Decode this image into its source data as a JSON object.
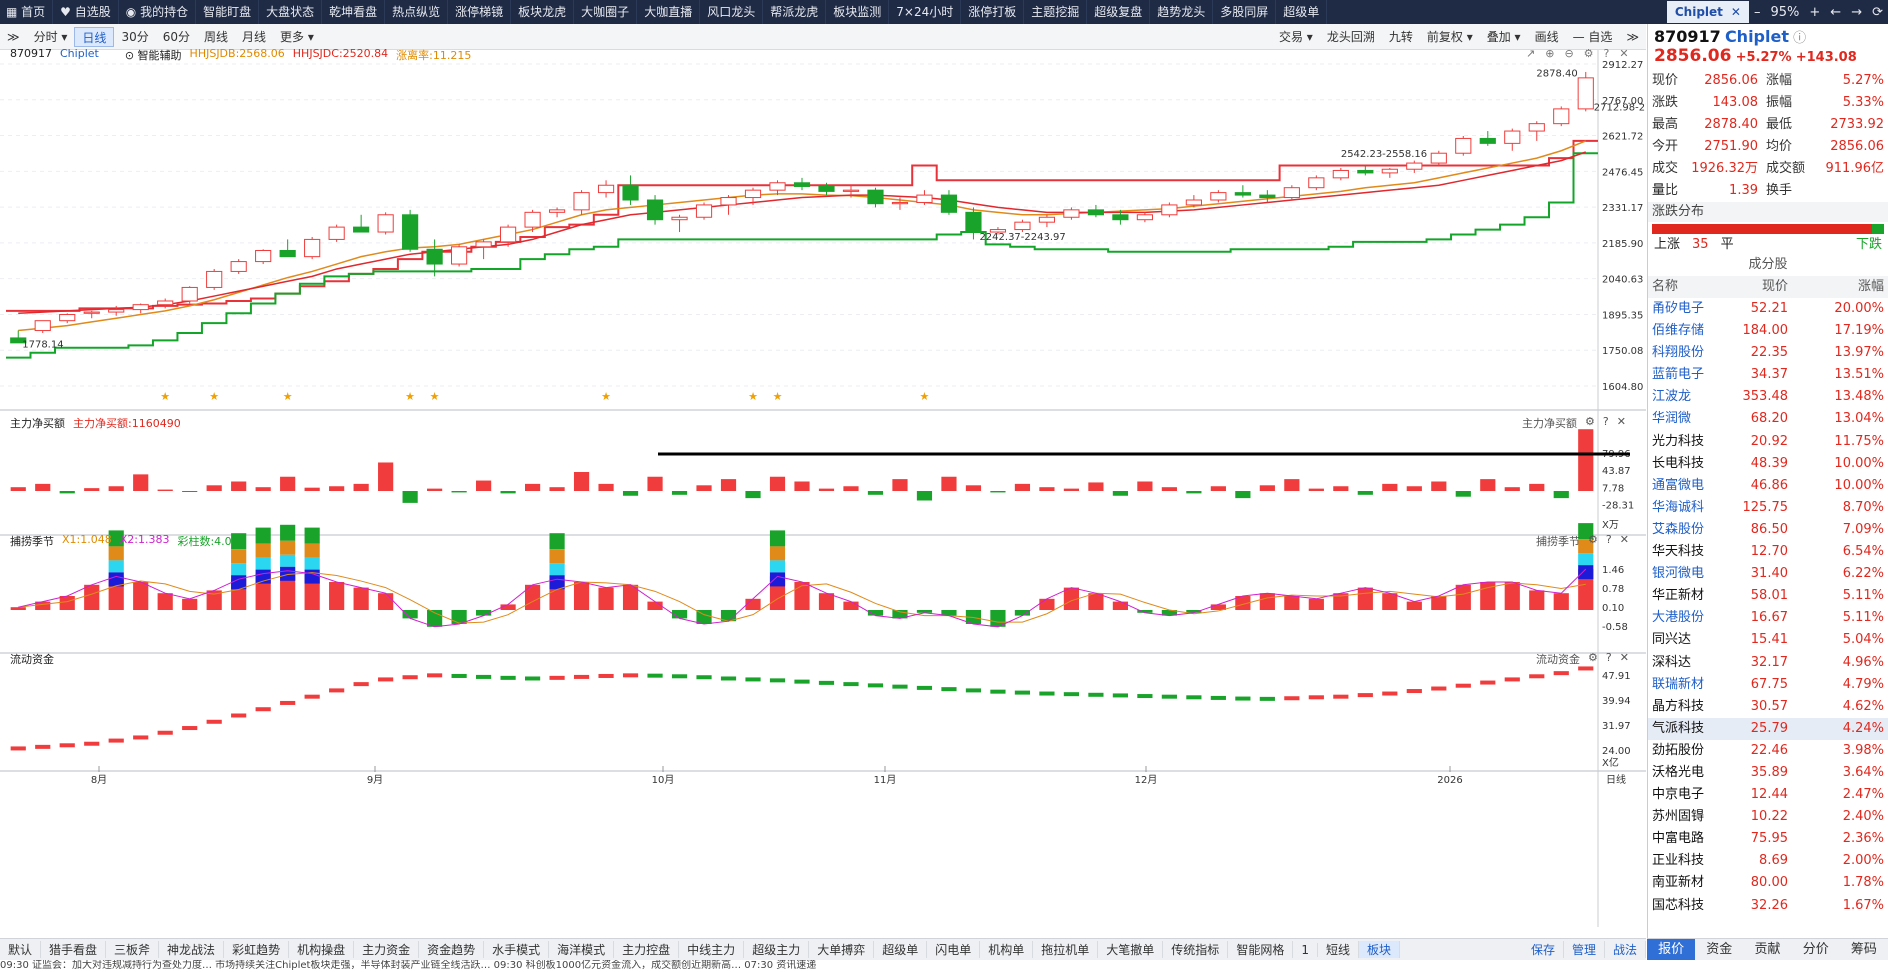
{
  "nav": {
    "items": [
      "首页",
      "自选股",
      "我的持仓",
      "智能盯盘",
      "大盘状态",
      "乾坤看盘",
      "热点纵览",
      "涨停梯镜",
      "板块龙虎",
      "大咖圈子",
      "大咖直播",
      "风口龙头",
      "帮派龙虎",
      "板块监测",
      "7×24小时",
      "涨停打板",
      "主题挖掘",
      "超级复盘",
      "趋势龙头",
      "多股同屏",
      "超级单"
    ],
    "active_tab": "Chiplet",
    "window": {
      "minimize": "–",
      "zoom": "95%",
      "plus": "+",
      "back": "←",
      "forward": "→",
      "refresh": "⟳"
    }
  },
  "toolbar": {
    "periods": [
      "分时",
      "日线",
      "30分",
      "60分",
      "周线",
      "月线",
      "更多"
    ],
    "active_period": "日线",
    "right": [
      "交易",
      "龙头回溯",
      "九转",
      "前复权",
      "叠加",
      "画线",
      "自选"
    ]
  },
  "chart": {
    "stock_code": "870917",
    "stock_name": "Chiplet",
    "assist": "智能辅助",
    "ind1": "HHJSJDB:2568.06",
    "ind2": "HHJSJDC:2520.84",
    "ind3": "涨离率:11.215",
    "annotations": {
      "high": "2878.40",
      "range_hi": "2712.98-2733.92",
      "range_mid": "2542.23-2558.16",
      "range_low": "2242.37-2243.97",
      "start": "1778.14"
    },
    "y_ticks": [
      "2912.27",
      "2767.00",
      "2621.72",
      "2476.45",
      "2331.17",
      "2185.90",
      "2040.63",
      "1895.35",
      "1750.08",
      "1604.80"
    ],
    "flow_title": "主力净买额",
    "flow_value": "主力净买额:1160490",
    "flow_ticks": [
      "79.96",
      "43.87",
      "7.78",
      "-28.31"
    ],
    "flow_unit": "X万",
    "season_title": "捕捞季节",
    "season_x1": "X1:1.048",
    "season_x2": "X2:1.383",
    "season_cols": "彩柱数:4.000",
    "season_ticks": [
      "1.46",
      "0.78",
      "0.10",
      "-0.58"
    ],
    "liquid_title": "流动资金",
    "liquid_ticks": [
      "47.91",
      "39.94",
      "31.97",
      "24.00"
    ],
    "liquid_unit": "X亿",
    "x_labels": [
      "8月",
      "9月",
      "10月",
      "11月",
      "12月",
      "2026"
    ],
    "x_right_label": "日线"
  },
  "chart_data": {
    "type": "candlestick",
    "stars": [
      6,
      8,
      11,
      16,
      17,
      24,
      30,
      31,
      37
    ],
    "candles": [
      [
        1800,
        1830,
        1790,
        1780
      ],
      [
        1830,
        1870,
        1820,
        1870
      ],
      [
        1870,
        1900,
        1860,
        1895
      ],
      [
        1900,
        1910,
        1880,
        1905
      ],
      [
        1905,
        1930,
        1890,
        1915
      ],
      [
        1915,
        1940,
        1900,
        1935
      ],
      [
        1935,
        1960,
        1920,
        1950
      ],
      [
        1950,
        2010,
        1940,
        2005
      ],
      [
        2005,
        2080,
        1995,
        2070
      ],
      [
        2070,
        2120,
        2060,
        2110
      ],
      [
        2110,
        2160,
        2100,
        2155
      ],
      [
        2155,
        2200,
        2140,
        2130
      ],
      [
        2130,
        2210,
        2120,
        2200
      ],
      [
        2200,
        2260,
        2190,
        2250
      ],
      [
        2250,
        2300,
        2240,
        2230
      ],
      [
        2230,
        2310,
        2220,
        2300
      ],
      [
        2300,
        2320,
        2150,
        2160
      ],
      [
        2160,
        2200,
        2050,
        2100
      ],
      [
        2100,
        2180,
        2090,
        2170
      ],
      [
        2170,
        2200,
        2120,
        2190
      ],
      [
        2190,
        2260,
        2170,
        2250
      ],
      [
        2250,
        2320,
        2230,
        2310
      ],
      [
        2310,
        2330,
        2290,
        2320
      ],
      [
        2320,
        2400,
        2300,
        2390
      ],
      [
        2390,
        2440,
        2370,
        2420
      ],
      [
        2420,
        2460,
        2340,
        2360
      ],
      [
        2360,
        2380,
        2260,
        2280
      ],
      [
        2280,
        2300,
        2230,
        2290
      ],
      [
        2290,
        2350,
        2280,
        2340
      ],
      [
        2340,
        2380,
        2300,
        2370
      ],
      [
        2370,
        2410,
        2340,
        2400
      ],
      [
        2400,
        2440,
        2380,
        2430
      ],
      [
        2430,
        2450,
        2400,
        2415
      ],
      [
        2415,
        2430,
        2380,
        2395
      ],
      [
        2395,
        2420,
        2370,
        2400
      ],
      [
        2400,
        2410,
        2330,
        2345
      ],
      [
        2345,
        2370,
        2320,
        2350
      ],
      [
        2350,
        2400,
        2340,
        2380
      ],
      [
        2380,
        2400,
        2300,
        2310
      ],
      [
        2310,
        2330,
        2200,
        2230
      ],
      [
        2230,
        2250,
        2220,
        2240
      ],
      [
        2240,
        2280,
        2230,
        2270
      ],
      [
        2270,
        2300,
        2250,
        2290
      ],
      [
        2290,
        2330,
        2280,
        2320
      ],
      [
        2320,
        2340,
        2290,
        2300
      ],
      [
        2300,
        2320,
        2260,
        2280
      ],
      [
        2280,
        2310,
        2270,
        2300
      ],
      [
        2300,
        2350,
        2290,
        2340
      ],
      [
        2340,
        2380,
        2330,
        2360
      ],
      [
        2360,
        2400,
        2350,
        2390
      ],
      [
        2390,
        2420,
        2370,
        2380
      ],
      [
        2380,
        2400,
        2350,
        2370
      ],
      [
        2370,
        2420,
        2360,
        2410
      ],
      [
        2410,
        2460,
        2400,
        2450
      ],
      [
        2450,
        2490,
        2440,
        2480
      ],
      [
        2480,
        2500,
        2460,
        2470
      ],
      [
        2470,
        2490,
        2450,
        2485
      ],
      [
        2485,
        2520,
        2470,
        2510
      ],
      [
        2510,
        2560,
        2500,
        2550
      ],
      [
        2550,
        2620,
        2540,
        2610
      ],
      [
        2610,
        2640,
        2580,
        2590
      ],
      [
        2590,
        2650,
        2560,
        2640
      ],
      [
        2640,
        2680,
        2600,
        2670
      ],
      [
        2670,
        2740,
        2660,
        2730
      ],
      [
        2730,
        2880,
        2720,
        2856
      ]
    ],
    "ma_red": [
      1900,
      1905,
      1910,
      1915,
      1920,
      1925,
      1935,
      1950,
      1970,
      1990,
      2010,
      2030,
      2050,
      2080,
      2100,
      2120,
      2140,
      2150,
      2160,
      2170,
      2180,
      2200,
      2230,
      2260,
      2280,
      2300,
      2310,
      2320,
      2330,
      2340,
      2350,
      2360,
      2370,
      2375,
      2380,
      2380,
      2375,
      2370,
      2360,
      2345,
      2330,
      2320,
      2310,
      2310,
      2310,
      2310,
      2310,
      2315,
      2320,
      2330,
      2340,
      2350,
      2360,
      2370,
      2380,
      2390,
      2400,
      2410,
      2420,
      2440,
      2460,
      2480,
      2500,
      2520,
      2555
    ],
    "ma_orange": [
      1830,
      1840,
      1850,
      1865,
      1880,
      1895,
      1910,
      1930,
      1955,
      1985,
      2015,
      2045,
      2070,
      2100,
      2130,
      2150,
      2165,
      2170,
      2180,
      2200,
      2220,
      2240,
      2270,
      2300,
      2320,
      2330,
      2340,
      2350,
      2360,
      2370,
      2380,
      2385,
      2385,
      2380,
      2378,
      2370,
      2360,
      2350,
      2340,
      2320,
      2310,
      2300,
      2300,
      2305,
      2310,
      2315,
      2320,
      2325,
      2335,
      2345,
      2355,
      2365,
      2375,
      2385,
      2395,
      2410,
      2420,
      2430,
      2450,
      2470,
      2490,
      2510,
      2530,
      2560,
      2600
    ],
    "resist": [
      1910,
      1910,
      1910,
      1920,
      1920,
      1920,
      1930,
      1935,
      1940,
      1950,
      1960,
      1980,
      2010,
      2030,
      2060,
      2080,
      2120,
      2150,
      2150,
      2170,
      2190,
      2210,
      2250,
      2260,
      2300,
      2420,
      2420,
      2420,
      2420,
      2420,
      2420,
      2420,
      2420,
      2420,
      2420,
      2420,
      2420,
      2500,
      2440,
      2440,
      2440,
      2440,
      2440,
      2440,
      2440,
      2440,
      2440,
      2440,
      2440,
      2440,
      2440,
      2440,
      2500,
      2500,
      2500,
      2500,
      2500,
      2500,
      2500,
      2500,
      2500,
      2500,
      2500,
      2530,
      2600
    ],
    "support": [
      1720,
      1740,
      1760,
      1760,
      1760,
      1770,
      1790,
      1820,
      1860,
      1900,
      1940,
      1980,
      2020,
      2050,
      2060,
      2070,
      2070,
      2070,
      2070,
      2080,
      2080,
      2120,
      2140,
      2160,
      2170,
      2200,
      2200,
      2200,
      2200,
      2200,
      2200,
      2200,
      2200,
      2200,
      2200,
      2200,
      2200,
      2200,
      2220,
      2230,
      2180,
      2170,
      2160,
      2160,
      2160,
      2150,
      2150,
      2150,
      2150,
      2150,
      2160,
      2160,
      2160,
      2160,
      2170,
      2190,
      2190,
      2190,
      2200,
      2220,
      2240,
      2260,
      2290,
      2350,
      2550
    ],
    "flow": [
      8,
      15,
      -5,
      6,
      10,
      35,
      3,
      -2,
      12,
      20,
      8,
      30,
      7,
      10,
      15,
      60,
      -25,
      5,
      -3,
      22,
      -5,
      15,
      8,
      40,
      15,
      -10,
      30,
      -8,
      12,
      25,
      -15,
      30,
      20,
      5,
      10,
      -8,
      25,
      -20,
      30,
      12,
      -3,
      15,
      8,
      5,
      18,
      -10,
      20,
      8,
      -5,
      10,
      -15,
      12,
      25,
      5,
      10,
      -8,
      15,
      10,
      20,
      -12,
      25,
      8,
      15,
      -15,
      130
    ],
    "season": [
      0.1,
      0.3,
      0.5,
      0.9,
      1.2,
      1.0,
      0.6,
      0.4,
      0.7,
      1.1,
      1.3,
      1.4,
      1.3,
      1.0,
      0.8,
      0.6,
      -0.3,
      -0.6,
      -0.5,
      -0.2,
      0.2,
      0.9,
      1.1,
      1.0,
      0.8,
      0.9,
      0.3,
      -0.3,
      -0.5,
      -0.4,
      0.4,
      1.2,
      1.0,
      0.6,
      0.3,
      -0.2,
      -0.3,
      -0.1,
      -0.2,
      -0.5,
      -0.6,
      -0.2,
      0.4,
      0.8,
      0.6,
      0.3,
      -0.1,
      -0.2,
      -0.1,
      0.2,
      0.5,
      0.6,
      0.5,
      0.4,
      0.6,
      0.8,
      0.6,
      0.3,
      0.5,
      0.9,
      1.0,
      1.0,
      0.7,
      0.6,
      1.46
    ],
    "liquid": [
      24.5,
      25,
      25.5,
      26,
      27,
      28,
      29.5,
      31,
      33,
      35,
      37,
      39,
      41,
      43,
      45,
      46.5,
      47.2,
      47.8,
      47.6,
      47.3,
      47,
      46.8,
      47,
      47.3,
      47.6,
      47.8,
      47.7,
      47.5,
      47.2,
      46.8,
      46.5,
      46.2,
      45.8,
      45.4,
      45,
      44.6,
      44.2,
      43.8,
      43.4,
      43,
      42.6,
      42.3,
      42,
      41.8,
      41.6,
      41.4,
      41.2,
      41,
      40.8,
      40.6,
      40.4,
      40.3,
      40.5,
      40.8,
      41,
      41.5,
      42,
      42.8,
      43.6,
      44.5,
      45.5,
      46.5,
      47.5,
      48.5,
      50
    ]
  },
  "side": {
    "code": "870917",
    "name": "Chiplet",
    "price": "2856.06",
    "change_pct": "+5.27%",
    "change": "+143.08",
    "quote": [
      [
        "现价",
        "2856.06",
        "涨幅",
        "5.27%"
      ],
      [
        "涨跌",
        "143.08",
        "振幅",
        "5.33%"
      ],
      [
        "最高",
        "2878.40",
        "最低",
        "2733.92"
      ],
      [
        "今开",
        "2751.90",
        "均价",
        "2856.06"
      ],
      [
        "成交量",
        "1926.32万",
        "成交额",
        "911.96亿"
      ],
      [
        "量比",
        "1.39",
        "换手",
        ""
      ]
    ],
    "dist_title": "涨跌分布",
    "dist": {
      "up_label": "上涨",
      "up": "35",
      "flat_label": "平",
      "down_label": "下跌"
    },
    "cf_title": "成分股",
    "cf_head": [
      "名称",
      "现价",
      "涨幅"
    ],
    "stocks": [
      [
        "甬矽电子",
        "52.21",
        "20.00%",
        1
      ],
      [
        "佰维存储",
        "184.00",
        "17.19%",
        1
      ],
      [
        "科翔股份",
        "22.35",
        "13.97%",
        1
      ],
      [
        "蓝箭电子",
        "34.37",
        "13.51%",
        1
      ],
      [
        "江波龙",
        "353.48",
        "13.48%",
        1
      ],
      [
        "华润微",
        "68.20",
        "13.04%",
        1
      ],
      [
        "光力科技",
        "20.92",
        "11.75%",
        0
      ],
      [
        "长电科技",
        "48.39",
        "10.00%",
        0
      ],
      [
        "通富微电",
        "46.86",
        "10.00%",
        1
      ],
      [
        "华海诚科",
        "125.75",
        "8.70%",
        1
      ],
      [
        "艾森股份",
        "86.50",
        "7.09%",
        1
      ],
      [
        "华天科技",
        "12.70",
        "6.54%",
        0
      ],
      [
        "银河微电",
        "31.40",
        "6.22%",
        1
      ],
      [
        "华正新材",
        "58.01",
        "5.11%",
        0
      ],
      [
        "大港股份",
        "16.67",
        "5.11%",
        1
      ],
      [
        "同兴达",
        "15.41",
        "5.04%",
        0
      ],
      [
        "深科达",
        "32.17",
        "4.96%",
        0
      ],
      [
        "联瑞新材",
        "67.75",
        "4.79%",
        1
      ],
      [
        "晶方科技",
        "30.57",
        "4.62%",
        0
      ],
      [
        "气派科技",
        "25.79",
        "4.24%",
        0
      ],
      [
        "劲拓股份",
        "22.46",
        "3.98%",
        0
      ],
      [
        "沃格光电",
        "35.89",
        "3.64%",
        0
      ],
      [
        "中京电子",
        "12.44",
        "2.47%",
        0
      ],
      [
        "苏州固锝",
        "10.22",
        "2.40%",
        0
      ],
      [
        "中富电路",
        "75.95",
        "2.36%",
        0
      ],
      [
        "正业科技",
        "8.69",
        "2.00%",
        0
      ],
      [
        "南亚新材",
        "80.00",
        "1.78%",
        0
      ],
      [
        "国芯科技",
        "32.26",
        "1.67%",
        0
      ]
    ],
    "tabs": [
      "报价",
      "资金",
      "贡献",
      "分价",
      "筹码"
    ],
    "active_tab": "报价"
  },
  "bottom": {
    "tabs": [
      "默认",
      "猎手看盘",
      "三板斧",
      "神龙战法",
      "彩虹趋势",
      "机构操盘",
      "主力资金",
      "资金趋势",
      "水手模式",
      "海洋模式",
      "主力控盘",
      "中线主力",
      "超级主力",
      "大单搏弈",
      "超级单",
      "闪电单",
      "机构单",
      "拖拉机单",
      "大笔撤单",
      "传统指标",
      "智能网格",
      "1",
      "短线",
      "板块"
    ],
    "active": "板块",
    "right": [
      "保存",
      "管理",
      "战法"
    ]
  },
  "ticker": "09:30 证监会：加大对违规减持行为查处力度…   市场持续关注Chiplet板块走强，半导体封装产业链全线活跃…   09:30 科创板1000亿元资金流入，成交额创近期新高…   07:30 资讯速递"
}
